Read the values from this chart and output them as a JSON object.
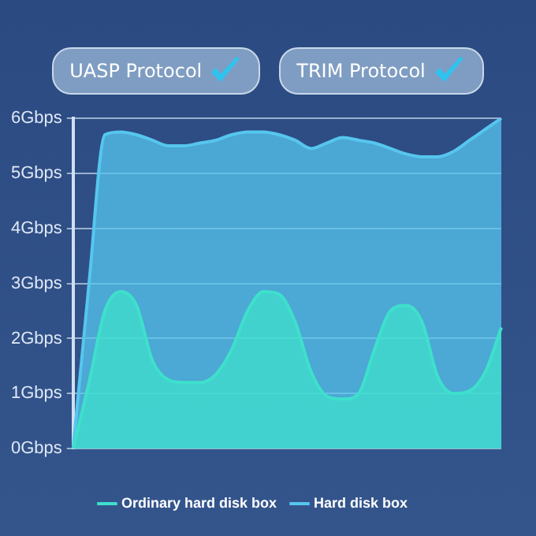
{
  "chart_data": {
    "type": "area",
    "annotations": [
      "UASP Protocol",
      "TRIM Protocol"
    ],
    "categories": [
      null,
      null,
      null,
      null,
      null,
      null,
      null,
      null,
      null,
      null,
      null,
      null,
      null,
      null,
      null,
      null,
      null,
      null,
      null,
      null,
      null,
      null,
      null,
      null,
      null,
      null,
      null,
      null
    ],
    "series": [
      {
        "name": "Hard disk box",
        "color": "#56c6ee",
        "values": [
          0,
          3.0,
          5.7,
          5.75,
          5.7,
          5.6,
          5.5,
          5.5,
          5.55,
          5.6,
          5.7,
          5.75,
          5.75,
          5.7,
          5.6,
          5.45,
          5.55,
          5.65,
          5.6,
          5.55,
          5.45,
          5.35,
          5.3,
          5.3,
          5.4,
          5.6,
          5.8,
          6.0
        ]
      },
      {
        "name": "Ordinary hard disk box",
        "color": "#3ee0cc",
        "values": [
          0,
          1.2,
          2.5,
          2.85,
          2.6,
          1.6,
          1.25,
          1.2,
          1.2,
          1.35,
          1.8,
          2.5,
          2.85,
          2.8,
          2.3,
          1.4,
          0.95,
          0.9,
          1.0,
          1.8,
          2.5,
          2.6,
          2.3,
          1.3,
          1.0,
          1.05,
          1.4,
          2.2
        ]
      }
    ],
    "ylim": [
      0,
      6
    ],
    "yticks": [
      {
        "value": 0,
        "label": "0Gbps"
      },
      {
        "value": 1,
        "label": "1Gbps"
      },
      {
        "value": 2,
        "label": "2Gbps"
      },
      {
        "value": 3,
        "label": "3Gbps"
      },
      {
        "value": 4,
        "label": "4Gbps"
      },
      {
        "value": 5,
        "label": "5Gbps"
      },
      {
        "value": 6,
        "label": "6Gbps"
      }
    ],
    "grid": "y",
    "legend": "bottom",
    "marker": "none",
    "line_style": "solid"
  }
}
